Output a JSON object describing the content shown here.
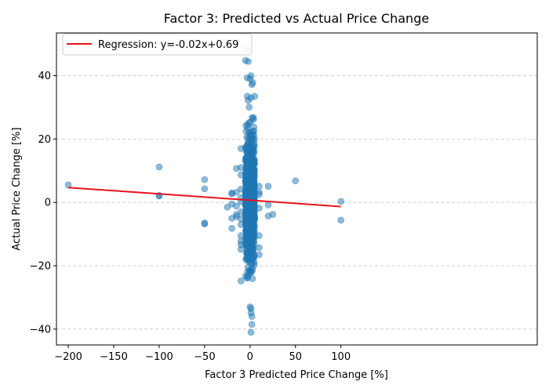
{
  "chart_data": {
    "type": "scatter",
    "title": "Factor 3: Predicted vs Actual Price Change",
    "xlabel": "Factor 3 Predicted Price Change [%]",
    "ylabel": "Actual Price Change [%]",
    "xlim": [
      -213,
      316
    ],
    "ylim": [
      -45,
      53.5
    ],
    "xticks": [
      -200,
      -150,
      -100,
      -50,
      0,
      50,
      100
    ],
    "yticks": [
      -40,
      -20,
      0,
      20,
      40
    ],
    "xtick_labels": [
      "−200",
      "−150",
      "−100",
      "−50",
      "0",
      "50",
      "100"
    ],
    "ytick_labels": [
      "−40",
      "−20",
      "0",
      "20",
      "40"
    ],
    "grid": {
      "y": true,
      "x": false,
      "style": "dashed"
    },
    "legend": {
      "position": "top-left",
      "entries": [
        "Regression: y=-0.02x+0.69"
      ]
    },
    "colors": {
      "points": "#1f77b4",
      "regression": "#e8131b"
    },
    "regression": {
      "slope": -0.02,
      "intercept": 0.69,
      "x_range": [
        -200,
        100
      ]
    },
    "outliers": [
      [
        -200,
        5.5
      ],
      [
        -100,
        11.2
      ],
      [
        -100,
        2.2
      ],
      [
        -100,
        2.0
      ],
      [
        -50,
        7.2
      ],
      [
        -50,
        4.3
      ],
      [
        -50,
        -6.5
      ],
      [
        -50,
        -6.8
      ],
      [
        -25,
        -1.5
      ],
      [
        -20,
        3.0
      ],
      [
        -20,
        2.7
      ],
      [
        -20,
        -0.5
      ],
      [
        -20,
        -5.0
      ],
      [
        -20,
        -8.2
      ],
      [
        -15,
        10.7
      ],
      [
        -15,
        3.2
      ],
      [
        -15,
        -1.2
      ],
      [
        -15,
        -3.8
      ],
      [
        -15,
        -4.5
      ],
      [
        -10,
        17.0
      ],
      [
        -10,
        11.0
      ],
      [
        -10,
        8.7
      ],
      [
        -10,
        4.2
      ],
      [
        -10,
        1.5
      ],
      [
        -10,
        0.2
      ],
      [
        -10,
        -3.0
      ],
      [
        -10,
        -5.2
      ],
      [
        -10,
        -7.0
      ],
      [
        -10,
        -10.5
      ],
      [
        -10,
        -12.2
      ],
      [
        -10,
        -13.3
      ],
      [
        -10,
        -14.8
      ],
      [
        -10,
        -24.8
      ],
      [
        10,
        5.1
      ],
      [
        10,
        3.2
      ],
      [
        10,
        2.5
      ],
      [
        10,
        -1.8
      ],
      [
        10,
        -10.5
      ],
      [
        10,
        -14.3
      ],
      [
        10,
        -16.5
      ],
      [
        20,
        5.1
      ],
      [
        20,
        -0.8
      ],
      [
        20,
        -4.3
      ],
      [
        25,
        -3.8
      ],
      [
        50,
        6.8
      ],
      [
        100,
        0.3
      ],
      [
        100,
        -5.6
      ],
      [
        -3,
        48.2
      ],
      [
        -2,
        44.5
      ],
      [
        -5,
        44.8
      ],
      [
        -3,
        39.3
      ],
      [
        0,
        39.0
      ],
      [
        1,
        40.0
      ],
      [
        2,
        37.2
      ],
      [
        3,
        37.8
      ],
      [
        -3,
        33.5
      ],
      [
        5,
        33.5
      ],
      [
        1,
        33.0
      ],
      [
        -2,
        32.2
      ],
      [
        0,
        -33.0
      ],
      [
        1,
        -33.5
      ],
      [
        1,
        -34.8
      ],
      [
        2,
        -36.0
      ],
      [
        2,
        -38.5
      ],
      [
        1,
        -41.0
      ]
    ],
    "core_cluster": {
      "x_center": 0,
      "x_spread": 5,
      "y_mean": 0,
      "y_spread": 9,
      "y_min": -30,
      "y_max": 32,
      "count": 1100
    }
  }
}
